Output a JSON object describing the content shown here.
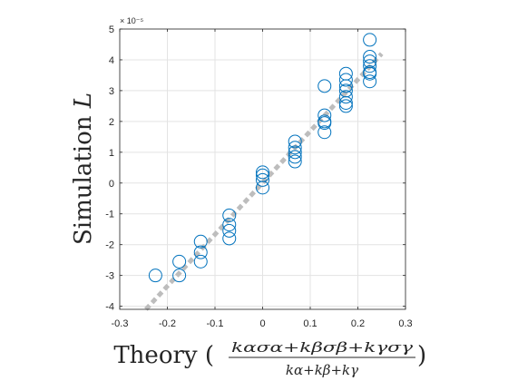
{
  "chart_data": {
    "type": "scatter",
    "xlabel": {
      "prefix": "Theory (",
      "numerator": "kασα+kβσβ+kγσγ",
      "denominator": "kα+kβ+kγ",
      "suffix": ")"
    },
    "ylabel": {
      "text": "Simulation ",
      "symbol": "L"
    },
    "y_exponent_label": "× 10⁻⁵",
    "xlim": [
      -0.3,
      0.3
    ],
    "ylim": [
      -4.1,
      5
    ],
    "xticks": [
      -0.3,
      -0.2,
      -0.1,
      0,
      0.1,
      0.2,
      0.3
    ],
    "xtick_labels": [
      "-0.3",
      "-0.2",
      "-0.1",
      "0",
      "0.1",
      "0.2",
      "0.3"
    ],
    "yticks": [
      -4,
      -3,
      -2,
      -1,
      0,
      1,
      2,
      3,
      4,
      5
    ],
    "ytick_labels": [
      "-4",
      "-3",
      "-2",
      "-1",
      "0",
      "1",
      "2",
      "3",
      "4",
      "5"
    ],
    "grid": true,
    "reference_line": {
      "style": "dotted",
      "color": "#bdbdbd",
      "points": [
        [
          -0.245,
          -4.1
        ],
        [
          0.25,
          4.2
        ]
      ]
    },
    "series": [
      {
        "marker": "open-circle",
        "color": "#0072BD",
        "points": [
          [
            -0.225,
            -3.0
          ],
          [
            -0.175,
            -2.55
          ],
          [
            -0.175,
            -3.0
          ],
          [
            -0.13,
            -1.9
          ],
          [
            -0.13,
            -2.25
          ],
          [
            -0.13,
            -2.55
          ],
          [
            -0.07,
            -1.05
          ],
          [
            -0.07,
            -1.35
          ],
          [
            -0.07,
            -1.55
          ],
          [
            -0.07,
            -1.8
          ],
          [
            0.0,
            0.35
          ],
          [
            0.0,
            0.25
          ],
          [
            0.0,
            0.1
          ],
          [
            0.0,
            -0.15
          ],
          [
            0.068,
            1.35
          ],
          [
            0.068,
            1.15
          ],
          [
            0.068,
            1.0
          ],
          [
            0.068,
            0.85
          ],
          [
            0.068,
            0.7
          ],
          [
            0.13,
            3.15
          ],
          [
            0.13,
            2.2
          ],
          [
            0.13,
            2.0
          ],
          [
            0.13,
            1.95
          ],
          [
            0.13,
            1.65
          ],
          [
            0.175,
            3.55
          ],
          [
            0.175,
            3.35
          ],
          [
            0.175,
            3.15
          ],
          [
            0.175,
            3.0
          ],
          [
            0.175,
            2.8
          ],
          [
            0.175,
            2.6
          ],
          [
            0.175,
            2.5
          ],
          [
            0.225,
            4.65
          ],
          [
            0.225,
            4.1
          ],
          [
            0.225,
            3.95
          ],
          [
            0.225,
            3.8
          ],
          [
            0.225,
            3.6
          ],
          [
            0.225,
            3.55
          ],
          [
            0.225,
            3.3
          ]
        ]
      }
    ]
  }
}
